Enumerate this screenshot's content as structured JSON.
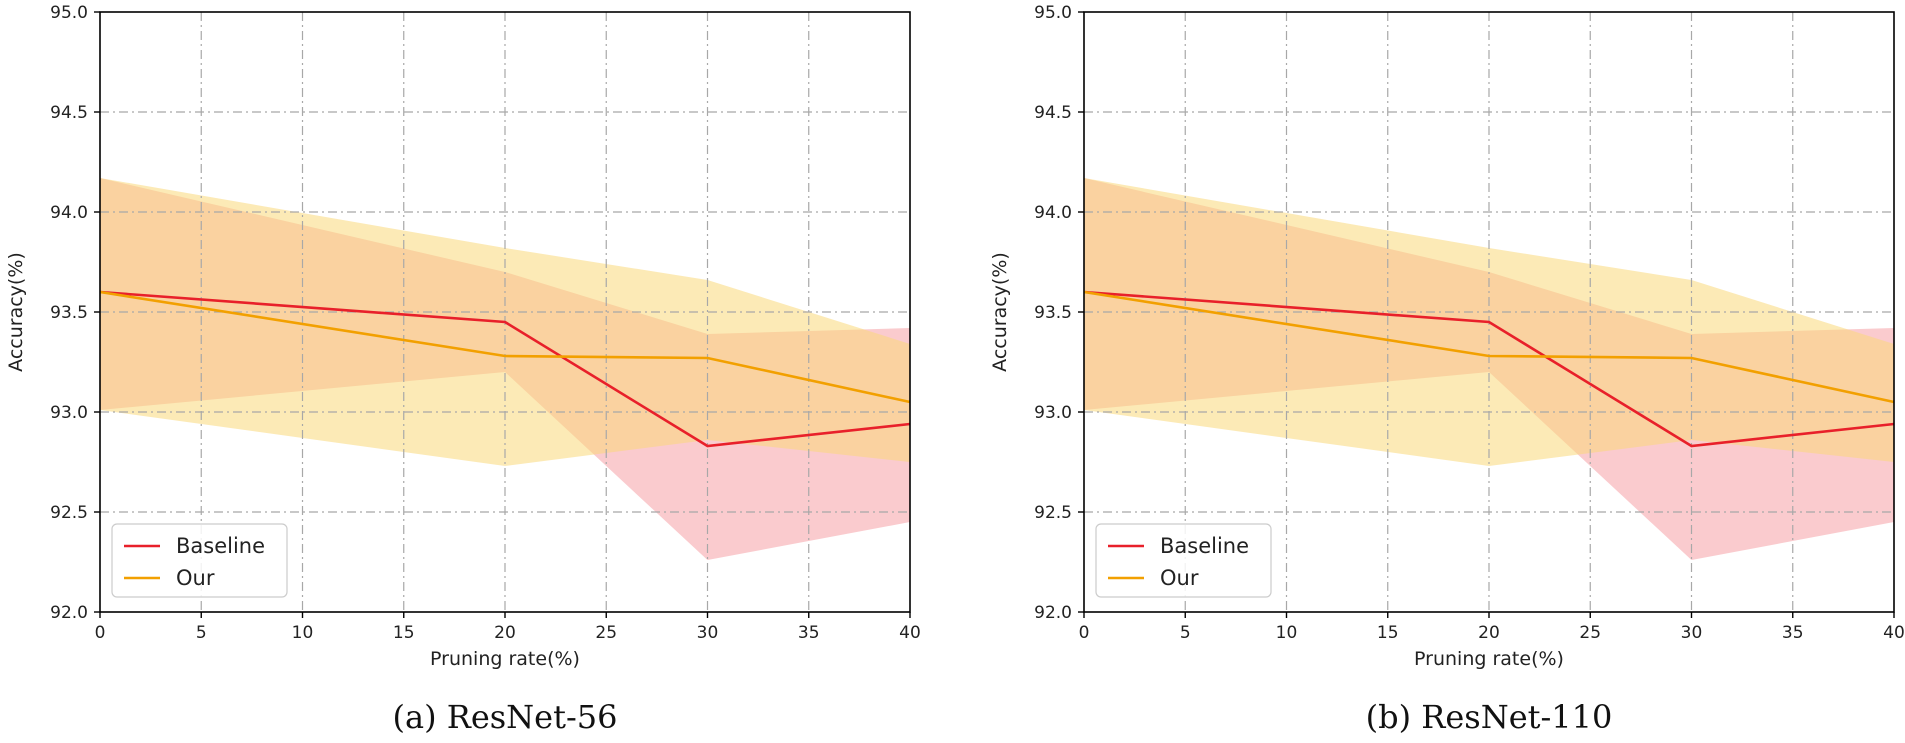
{
  "chart_data": [
    {
      "type": "line",
      "caption": "(a) ResNet-56",
      "xlabel": "Pruning rate(%)",
      "ylabel": "Accuracy(%)",
      "xlim": [
        0,
        40
      ],
      "ylim": [
        92.0,
        95.0
      ],
      "xticks": [
        "0",
        "5",
        "10",
        "15",
        "20",
        "25",
        "30",
        "35",
        "40"
      ],
      "yticks": [
        "92.0",
        "92.5",
        "93.0",
        "93.5",
        "94.0",
        "94.5",
        "95.0"
      ],
      "grid": true,
      "legend_position": "lower-left",
      "x": [
        0,
        20,
        30,
        40
      ],
      "series": [
        {
          "name": "Baseline",
          "color": "#e8202a",
          "band_color": "#f6a0a6",
          "values": [
            93.6,
            93.45,
            92.83,
            92.94
          ],
          "band_upper": [
            94.17,
            93.7,
            93.39,
            93.42
          ],
          "band_lower": [
            93.01,
            93.2,
            92.26,
            92.45
          ]
        },
        {
          "name": "Our",
          "color": "#f2a000",
          "band_color": "#f9d87a",
          "values": [
            93.6,
            93.28,
            93.27,
            93.05
          ],
          "band_upper": [
            94.17,
            93.82,
            93.66,
            93.34
          ],
          "band_lower": [
            93.01,
            92.73,
            92.86,
            92.75
          ]
        }
      ]
    },
    {
      "type": "line",
      "caption": "(b) ResNet-110",
      "xlabel": "Pruning rate(%)",
      "ylabel": "Accuracy(%)",
      "xlim": [
        0,
        40
      ],
      "ylim": [
        92.0,
        95.0
      ],
      "xticks": [
        "0",
        "5",
        "10",
        "15",
        "20",
        "25",
        "30",
        "35",
        "40"
      ],
      "yticks": [
        "92.0",
        "92.5",
        "93.0",
        "93.5",
        "94.0",
        "94.5",
        "95.0"
      ],
      "grid": true,
      "legend_position": "lower-left",
      "x": [
        0,
        20,
        30,
        40
      ],
      "series": [
        {
          "name": "Baseline",
          "color": "#e8202a",
          "band_color": "#f6a0a6",
          "values": [
            93.6,
            93.45,
            92.83,
            92.94
          ],
          "band_upper": [
            94.17,
            93.7,
            93.39,
            93.42
          ],
          "band_lower": [
            93.01,
            93.2,
            92.26,
            92.45
          ]
        },
        {
          "name": "Our",
          "color": "#f2a000",
          "band_color": "#f9d87a",
          "values": [
            93.6,
            93.28,
            93.27,
            93.05
          ],
          "band_upper": [
            94.17,
            93.82,
            93.66,
            93.34
          ],
          "band_lower": [
            93.01,
            92.73,
            92.86,
            92.75
          ]
        }
      ]
    }
  ]
}
